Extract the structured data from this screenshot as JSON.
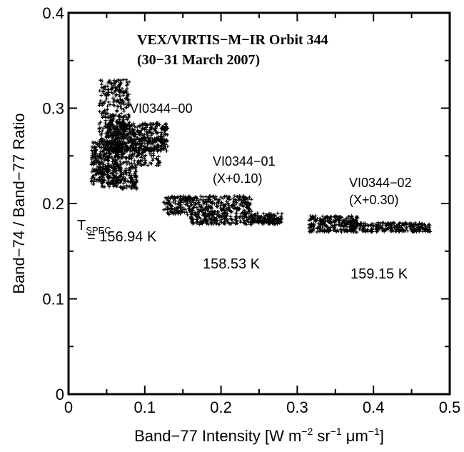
{
  "chart_data": {
    "type": "scatter",
    "title": "VEX/VIRTIS−M−IR Orbit 344",
    "subtitle": "(30−31 March 2007)",
    "xlabel_main": "Band−77 Intensity [W m",
    "xlabel_sup1": "−2",
    "xlabel_mid": " sr",
    "xlabel_sup2": "−1",
    "xlabel_mu": " μm",
    "xlabel_sup3": "−1",
    "xlabel_end": "]",
    "ylabel": "Band−74 / Band−77 Ratio",
    "xlim": [
      0,
      0.5
    ],
    "ylim": [
      0,
      0.4
    ],
    "xticks": [
      0,
      0.1,
      0.2,
      0.3,
      0.4,
      0.5
    ],
    "xtick_labels": [
      "0",
      "0.1",
      "0.2",
      "0.3",
      "0.4",
      "0.5"
    ],
    "yticks": [
      0,
      0.1,
      0.2,
      0.3,
      0.4
    ],
    "ytick_labels": [
      "0",
      "0.1",
      "0.2",
      "0.3",
      "0.4"
    ],
    "grid": false,
    "marker": "+",
    "series": [
      {
        "name": "VI0344−00",
        "offset_note": "",
        "temperature_prefix": "T",
        "temperature_sub": "SPEC",
        "temperature": "= 156.94 K",
        "clusters": [
          {
            "x": [
              0.04,
              0.08
            ],
            "y": [
              0.255,
              0.33
            ],
            "n": 350
          },
          {
            "x": [
              0.05,
              0.13
            ],
            "y": [
              0.255,
              0.285
            ],
            "n": 500
          },
          {
            "x": [
              0.03,
              0.07
            ],
            "y": [
              0.22,
              0.265
            ],
            "n": 300
          },
          {
            "x": [
              0.04,
              0.09
            ],
            "y": [
              0.215,
              0.24
            ],
            "n": 180
          },
          {
            "x": [
              0.06,
              0.12
            ],
            "y": [
              0.24,
              0.26
            ],
            "n": 150
          }
        ]
      },
      {
        "name": "VI0344−01",
        "offset_note": "(X+0.10)",
        "temperature": "158.53 K",
        "clusters": [
          {
            "x": [
              0.125,
              0.24
            ],
            "y": [
              0.188,
              0.208
            ],
            "n": 400
          },
          {
            "x": [
              0.16,
              0.28
            ],
            "y": [
              0.178,
              0.19
            ],
            "n": 280
          },
          {
            "x": [
              0.24,
              0.28
            ],
            "y": [
              0.18,
              0.185
            ],
            "n": 60
          }
        ]
      },
      {
        "name": "VI0344−02",
        "offset_note": "(X+0.30)",
        "temperature": "159.15 K",
        "clusters": [
          {
            "x": [
              0.315,
              0.38
            ],
            "y": [
              0.17,
              0.187
            ],
            "n": 260
          },
          {
            "x": [
              0.37,
              0.475
            ],
            "y": [
              0.17,
              0.18
            ],
            "n": 260
          }
        ]
      }
    ]
  }
}
